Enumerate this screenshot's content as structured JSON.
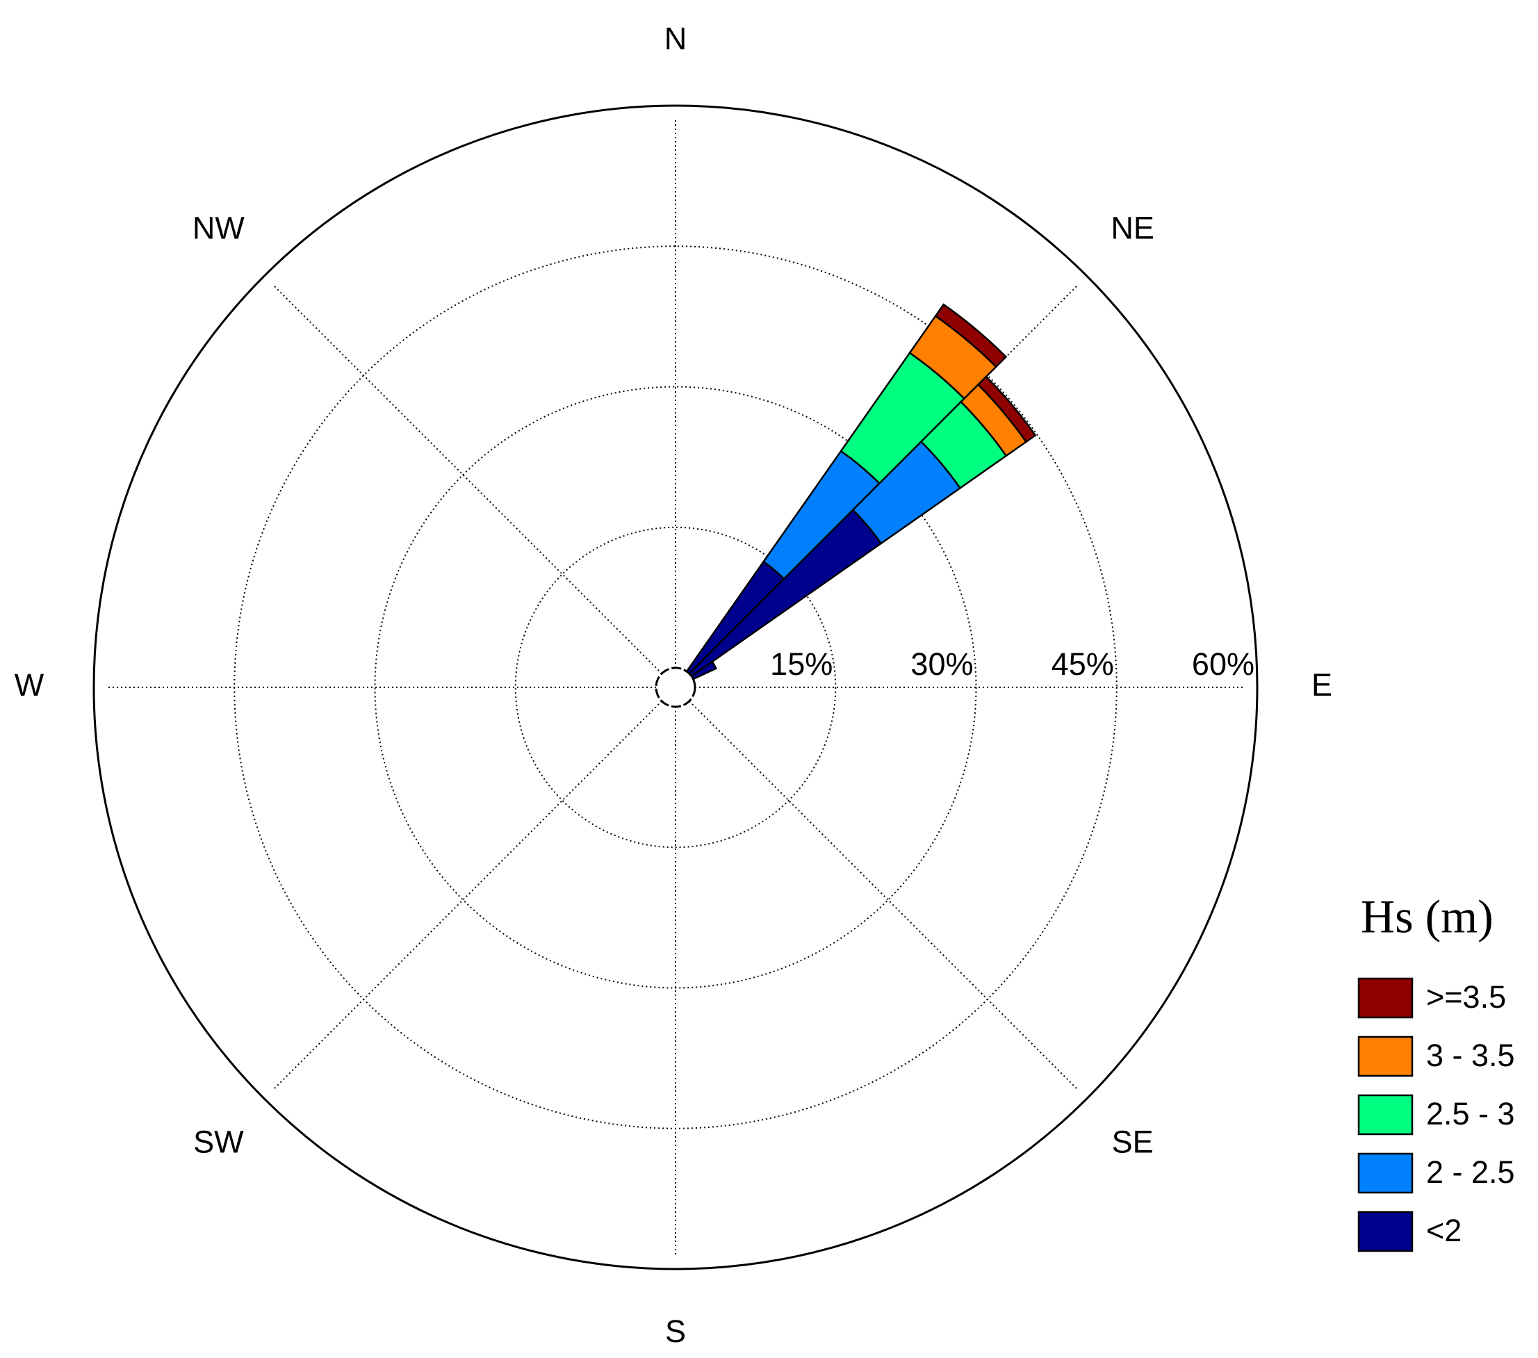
{
  "chart_data": {
    "type": "windrose",
    "compass": [
      "N",
      "NE",
      "E",
      "SE",
      "S",
      "SW",
      "W",
      "NW"
    ],
    "directions": [
      40,
      50,
      60
    ],
    "bin_width": 10,
    "rlim": [
      0,
      60
    ],
    "rticks": [
      {
        "value": 15,
        "label": "15%"
      },
      {
        "value": 30,
        "label": "30%"
      },
      {
        "value": 45,
        "label": "45%"
      },
      {
        "value": 60,
        "label": "60%"
      }
    ],
    "legend_title": "Hs (m)",
    "series": [
      {
        "name": "<2",
        "color": "#00008f",
        "values": [
          14.3,
          24.7,
          2.7
        ]
      },
      {
        "name": "2 - 2.5",
        "color": "#0080ff",
        "values": [
          14.4,
          10.3,
          0
        ]
      },
      {
        "name": "2.5 - 3",
        "color": "#00ff80",
        "values": [
          12.8,
          6,
          0
        ]
      },
      {
        "name": "3 - 3.5",
        "color": "#ff8000",
        "values": [
          4.8,
          2.6,
          0
        ]
      },
      {
        "name": ">=3.5",
        "color": "#8f0000",
        "values": [
          1.5,
          1.2,
          0
        ]
      }
    ]
  }
}
